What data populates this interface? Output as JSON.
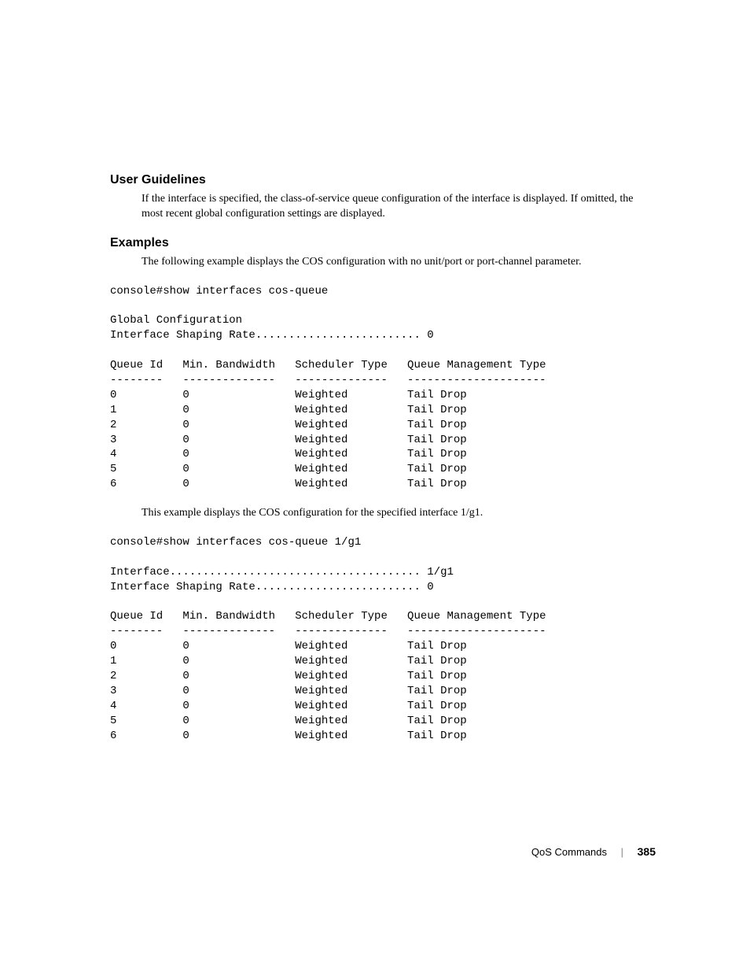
{
  "headings": {
    "user_guidelines": "User Guidelines",
    "examples": "Examples"
  },
  "paragraphs": {
    "guidelines_body": "If the interface is specified, the class-of-service queue configuration of the interface is displayed. If omitted, the most recent global configuration settings are displayed.",
    "examples_intro": "The following example displays the COS configuration with no unit/port or port-channel parameter.",
    "examples_mid": "This example displays the COS configuration for the specified interface 1/g1."
  },
  "cli": {
    "example1": {
      "command": "console#show interfaces cos-queue",
      "header": "Global Configuration\nInterface Shaping Rate......................... 0",
      "columns_line": "Queue Id   Min. Bandwidth   Scheduler Type   Queue Management Type",
      "separator_line": "--------   --------------   --------------   ---------------------",
      "rows": [
        {
          "queue_id": "0",
          "min_bw": "0",
          "scheduler": "Weighted",
          "qmt": "Tail Drop"
        },
        {
          "queue_id": "1",
          "min_bw": "0",
          "scheduler": "Weighted",
          "qmt": "Tail Drop"
        },
        {
          "queue_id": "2",
          "min_bw": "0",
          "scheduler": "Weighted",
          "qmt": "Tail Drop"
        },
        {
          "queue_id": "3",
          "min_bw": "0",
          "scheduler": "Weighted",
          "qmt": "Tail Drop"
        },
        {
          "queue_id": "4",
          "min_bw": "0",
          "scheduler": "Weighted",
          "qmt": "Tail Drop"
        },
        {
          "queue_id": "5",
          "min_bw": "0",
          "scheduler": "Weighted",
          "qmt": "Tail Drop"
        },
        {
          "queue_id": "6",
          "min_bw": "0",
          "scheduler": "Weighted",
          "qmt": "Tail Drop"
        }
      ]
    },
    "example2": {
      "command": "console#show interfaces cos-queue 1/g1",
      "header": "Interface...................................... 1/g1\nInterface Shaping Rate......................... 0",
      "columns_line": "Queue Id   Min. Bandwidth   Scheduler Type   Queue Management Type",
      "separator_line": "--------   --------------   --------------   ---------------------",
      "rows": [
        {
          "queue_id": "0",
          "min_bw": "0",
          "scheduler": "Weighted",
          "qmt": "Tail Drop"
        },
        {
          "queue_id": "1",
          "min_bw": "0",
          "scheduler": "Weighted",
          "qmt": "Tail Drop"
        },
        {
          "queue_id": "2",
          "min_bw": "0",
          "scheduler": "Weighted",
          "qmt": "Tail Drop"
        },
        {
          "queue_id": "3",
          "min_bw": "0",
          "scheduler": "Weighted",
          "qmt": "Tail Drop"
        },
        {
          "queue_id": "4",
          "min_bw": "0",
          "scheduler": "Weighted",
          "qmt": "Tail Drop"
        },
        {
          "queue_id": "5",
          "min_bw": "0",
          "scheduler": "Weighted",
          "qmt": "Tail Drop"
        },
        {
          "queue_id": "6",
          "min_bw": "0",
          "scheduler": "Weighted",
          "qmt": "Tail Drop"
        }
      ]
    },
    "column_widths": {
      "queue_id": 11,
      "min_bw": 17,
      "scheduler": 17
    }
  },
  "footer": {
    "section": "QoS Commands",
    "separator": "|",
    "page": "385"
  },
  "colors": {
    "background": "#ffffff",
    "text": "#000000",
    "footer_sep": "#888888"
  },
  "typography": {
    "heading_font": "Arial",
    "heading_size_pt": 12,
    "body_font": "Georgia",
    "body_size_pt": 11,
    "mono_font": "Courier New",
    "mono_size_pt": 10
  }
}
